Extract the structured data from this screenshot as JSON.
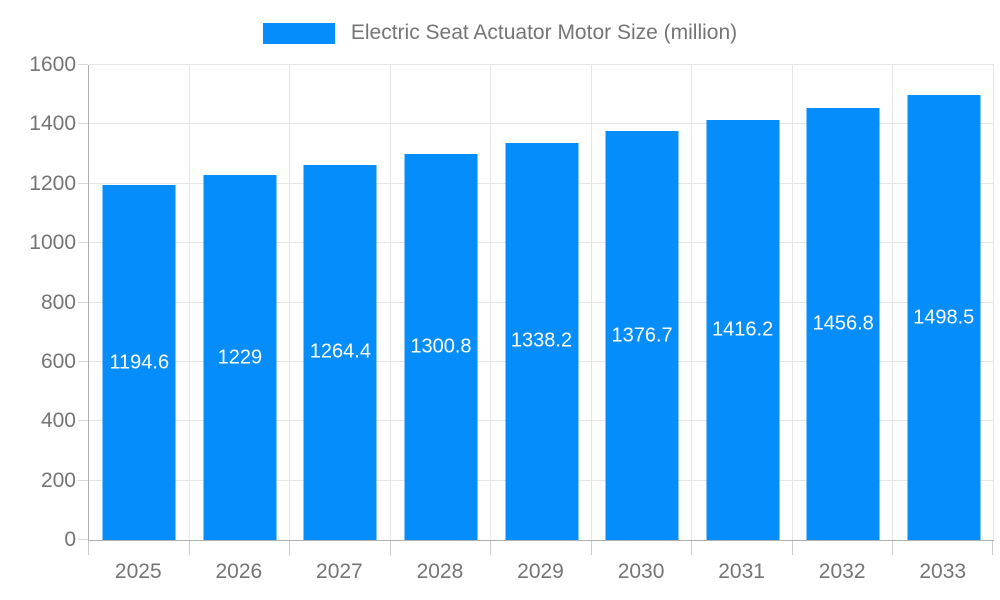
{
  "colors": {
    "bar": "#058DFB",
    "grid": "#e6e6e6",
    "axis_line": "#b0b0b0",
    "tick": "#cccccc",
    "axis_text": "#757575",
    "bar_label_text": "#ffffff",
    "background": "#ffffff"
  },
  "chart_data": {
    "type": "bar",
    "title": "Electric Seat Actuator Motor Size (million)",
    "categories": [
      "2025",
      "2026",
      "2027",
      "2028",
      "2029",
      "2030",
      "2031",
      "2032",
      "2033"
    ],
    "values": [
      1194.6,
      1229,
      1264.4,
      1300.8,
      1338.2,
      1376.7,
      1416.2,
      1456.8,
      1498.5
    ],
    "value_labels": [
      "1194.6",
      "1229",
      "1264.4",
      "1300.8",
      "1338.2",
      "1376.7",
      "1416.2",
      "1456.8",
      "1498.5"
    ],
    "xlabel": "",
    "ylabel": "",
    "ylim": [
      0,
      1600
    ],
    "ytick_step": 200,
    "ytick_labels": [
      "0",
      "200",
      "400",
      "600",
      "800",
      "1000",
      "1200",
      "1400",
      "1600"
    ],
    "grid": "on",
    "legend_position": "top",
    "value_label_position": "center-of-bar"
  }
}
